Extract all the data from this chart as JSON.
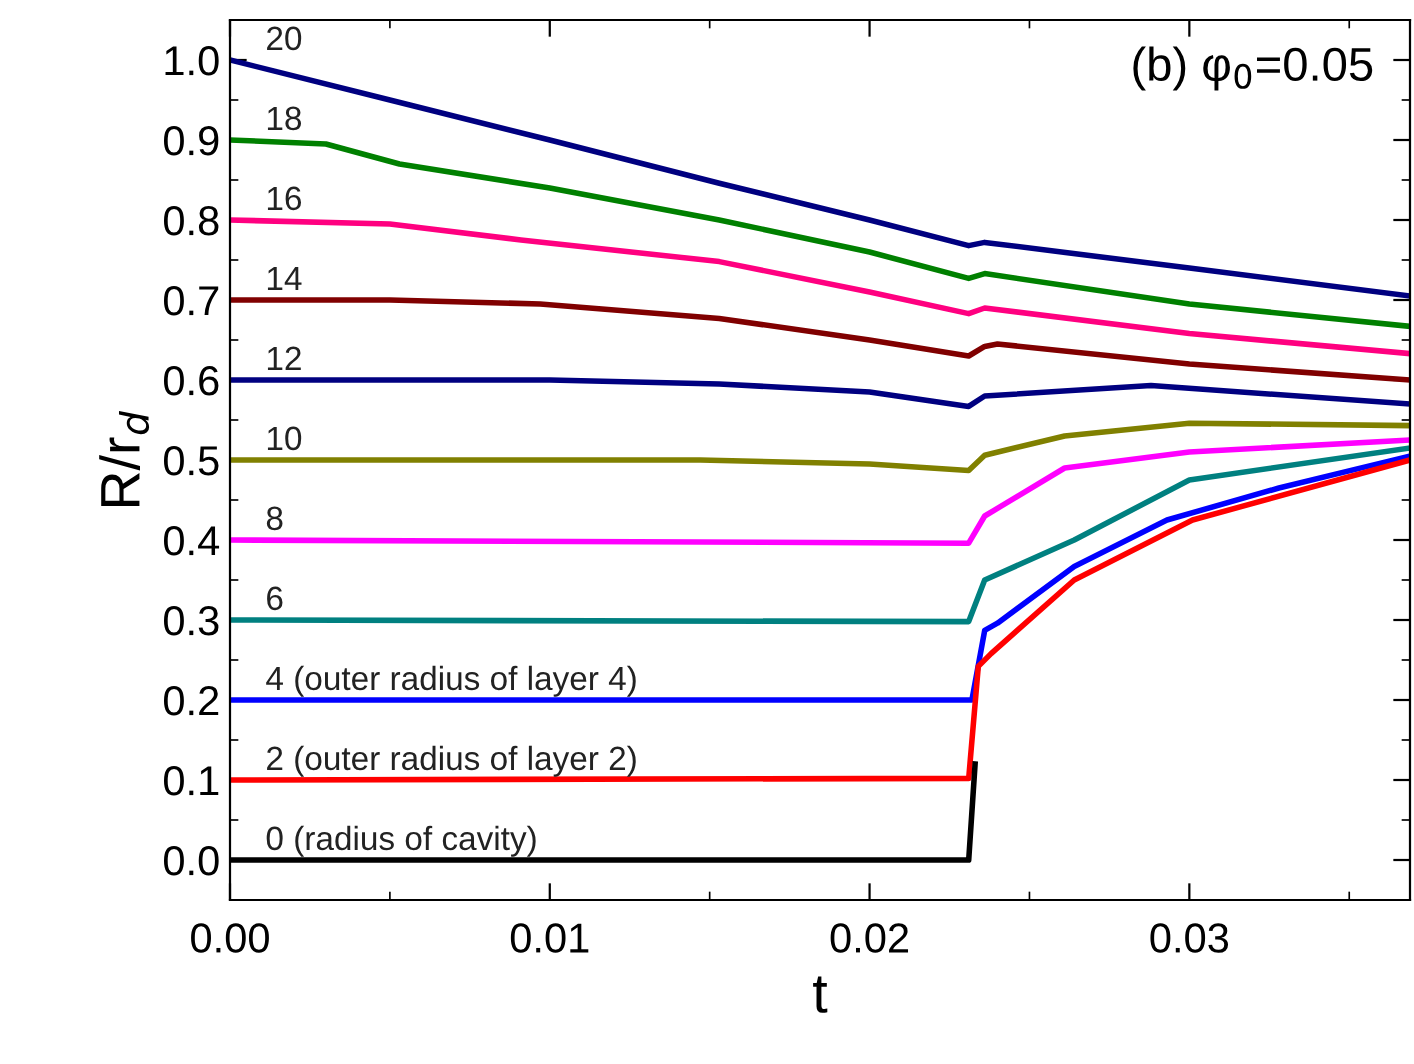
{
  "chart_data": {
    "type": "line",
    "xlabel": "t",
    "ylabel": "R/r$_{d}$",
    "annotations": [
      "(b) φ$_{0}$=0.05"
    ],
    "xlim": [
      0,
      0.0369
    ],
    "ylim": [
      -0.05,
      1.05
    ],
    "xticks": [
      {
        "value": 0,
        "label": "0.00"
      },
      {
        "value": 0.005,
        "label": null
      },
      {
        "value": 0.01,
        "label": "0.01"
      },
      {
        "value": 0.015,
        "label": null
      },
      {
        "value": 0.02,
        "label": "0.02"
      },
      {
        "value": 0.025,
        "label": null
      },
      {
        "value": 0.03,
        "label": "0.03"
      },
      {
        "value": 0.035,
        "label": null
      }
    ],
    "yticks": [
      {
        "value": 0,
        "label": "0.0"
      },
      {
        "value": 0.05,
        "label": null
      },
      {
        "value": 0.1,
        "label": "0.1"
      },
      {
        "value": 0.15,
        "label": null
      },
      {
        "value": 0.2,
        "label": "0.2"
      },
      {
        "value": 0.25,
        "label": null
      },
      {
        "value": 0.3,
        "label": "0.3"
      },
      {
        "value": 0.35,
        "label": null
      },
      {
        "value": 0.4,
        "label": "0.4"
      },
      {
        "value": 0.45,
        "label": null
      },
      {
        "value": 0.5,
        "label": "0.5"
      },
      {
        "value": 0.55,
        "label": null
      },
      {
        "value": 0.6,
        "label": "0.6"
      },
      {
        "value": 0.65,
        "label": null
      },
      {
        "value": 0.7,
        "label": "0.7"
      },
      {
        "value": 0.75,
        "label": null
      },
      {
        "value": 0.8,
        "label": "0.8"
      },
      {
        "value": 0.85,
        "label": null
      },
      {
        "value": 0.9,
        "label": "0.9"
      },
      {
        "value": 0.95,
        "label": null
      },
      {
        "value": 1.0,
        "label": "1.0"
      }
    ],
    "grid": false,
    "legend": false,
    "marker": "none",
    "line_style": "solid",
    "series": [
      {
        "name": "20",
        "color": "#000080",
        "x": [
          0,
          0.005,
          0.01,
          0.0153,
          0.02,
          0.0231,
          0.0236,
          0.03,
          0.0369
        ],
        "values": [
          1.0,
          0.95,
          0.9,
          0.846,
          0.8,
          0.768,
          0.772,
          0.74,
          0.705
        ]
      },
      {
        "name": "18",
        "color": "#008000",
        "x": [
          0,
          0.003,
          0.0053,
          0.01,
          0.0153,
          0.02,
          0.0231,
          0.0236,
          0.03,
          0.0369
        ],
        "values": [
          0.9,
          0.895,
          0.87,
          0.84,
          0.8,
          0.76,
          0.727,
          0.733,
          0.695,
          0.667
        ]
      },
      {
        "name": "16",
        "color": "#ff0080",
        "x": [
          0,
          0.005,
          0.0091,
          0.0153,
          0.02,
          0.0231,
          0.0236,
          0.03,
          0.0369
        ],
        "values": [
          0.8,
          0.795,
          0.775,
          0.748,
          0.71,
          0.683,
          0.69,
          0.658,
          0.633
        ]
      },
      {
        "name": "14",
        "color": "#800000",
        "x": [
          0,
          0.005,
          0.0097,
          0.0153,
          0.02,
          0.0231,
          0.0236,
          0.024,
          0.03,
          0.0369
        ],
        "values": [
          0.7,
          0.7,
          0.695,
          0.677,
          0.65,
          0.63,
          0.642,
          0.645,
          0.62,
          0.6
        ]
      },
      {
        "name": "12",
        "color": "#000080",
        "x": [
          0,
          0.01,
          0.0153,
          0.02,
          0.0231,
          0.0236,
          0.0288,
          0.0369
        ],
        "values": [
          0.6,
          0.6,
          0.595,
          0.585,
          0.567,
          0.58,
          0.593,
          0.57
        ]
      },
      {
        "name": "10",
        "color": "#808000",
        "x": [
          0,
          0.0147,
          0.02,
          0.0231,
          0.0236,
          0.0261,
          0.03,
          0.0369
        ],
        "values": [
          0.5,
          0.5,
          0.495,
          0.487,
          0.506,
          0.53,
          0.546,
          0.543
        ]
      },
      {
        "name": "8",
        "color": "#ff00ff",
        "x": [
          0,
          0.0231,
          0.0236,
          0.0261,
          0.03,
          0.0369
        ],
        "values": [
          0.4,
          0.396,
          0.43,
          0.49,
          0.51,
          0.525
        ]
      },
      {
        "name": "6",
        "color": "#008080",
        "x": [
          0,
          0.0231,
          0.0236,
          0.0264,
          0.0276,
          0.03,
          0.0369
        ],
        "values": [
          0.3,
          0.298,
          0.35,
          0.4,
          0.425,
          0.475,
          0.515
        ]
      },
      {
        "name": "4 (outer radius of layer 4)",
        "color": "#0000ff",
        "x": [
          0,
          0.0232,
          0.0236,
          0.024,
          0.0264,
          0.0293,
          0.0328,
          0.0369
        ],
        "values": [
          0.2,
          0.2,
          0.287,
          0.296,
          0.367,
          0.425,
          0.465,
          0.505
        ]
      },
      {
        "name": "2 (outer radius of layer 2)",
        "color": "#ff0000",
        "x": [
          0,
          0.0231,
          0.0234,
          0.0238,
          0.0264,
          0.0301,
          0.0369
        ],
        "values": [
          0.1,
          0.102,
          0.242,
          0.258,
          0.35,
          0.425,
          0.5
        ]
      },
      {
        "name": "0 (radius of cavity)",
        "color": "#000000",
        "x": [
          0,
          0.0231,
          0.0233
        ],
        "values": [
          0.0,
          0.0,
          0.12
        ]
      }
    ]
  }
}
